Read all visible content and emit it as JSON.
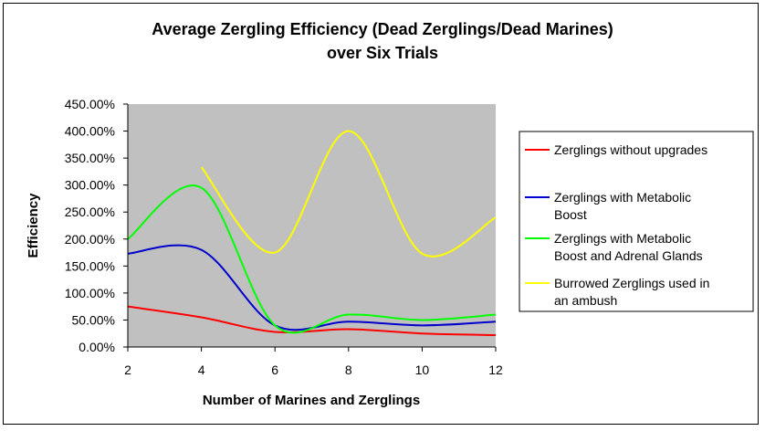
{
  "chart_data": {
    "type": "line",
    "title": [
      "Average Zergling Efficiency (Dead Zerglings/Dead Marines)",
      "over Six Trials"
    ],
    "xlabel": "Number of Marines and Zerglings",
    "ylabel": "Efficiency",
    "xlim": [
      2,
      12
    ],
    "ylim": [
      0,
      4.5
    ],
    "x_ticks": [
      "2",
      "4",
      "6",
      "8",
      "10",
      "12"
    ],
    "y_ticks": [
      "0.00%",
      "50.00%",
      "100.00%",
      "150.00%",
      "200.00%",
      "250.00%",
      "300.00%",
      "350.00%",
      "400.00%",
      "450.00%"
    ],
    "grid": false,
    "legend_position": "right",
    "plot_background": "#c0c0c0",
    "series": [
      {
        "name": "Zerglings without upgrades",
        "color": "#ff0000",
        "x": [
          2,
          4,
          6,
          8,
          10,
          12
        ],
        "y": [
          0.75,
          0.55,
          0.28,
          0.33,
          0.25,
          0.22
        ]
      },
      {
        "name": "Zerglings with Metabolic Boost",
        "color": "#0000cc",
        "x": [
          2,
          4,
          6,
          8,
          10,
          12
        ],
        "y": [
          1.73,
          1.8,
          0.4,
          0.47,
          0.4,
          0.47
        ]
      },
      {
        "name": "Zerglings with Metabolic Boost and Adrenal Glands",
        "color": "#00ff00",
        "x": [
          2,
          4,
          6,
          8,
          10,
          12
        ],
        "y": [
          2.0,
          2.95,
          0.4,
          0.6,
          0.5,
          0.6
        ]
      },
      {
        "name": "Burrowed Zerglings used in an ambush",
        "color": "#ffff00",
        "x": [
          4,
          6,
          8,
          10,
          12
        ],
        "y": [
          3.33,
          1.75,
          4.0,
          1.73,
          2.4
        ]
      }
    ]
  }
}
